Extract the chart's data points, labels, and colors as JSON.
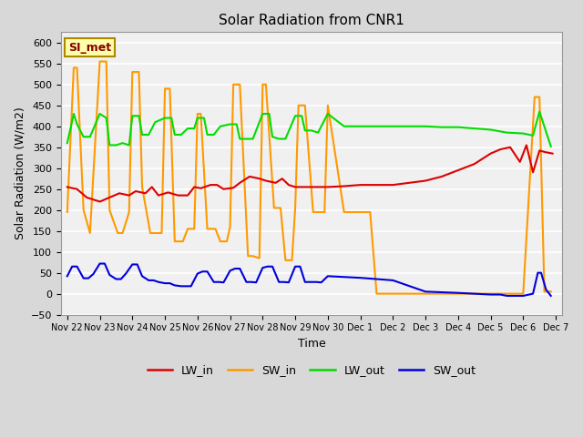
{
  "title": "Solar Radiation from CNR1",
  "xlabel": "Time",
  "ylabel": "Solar Radiation (W/m2)",
  "ylim": [
    -50,
    625
  ],
  "fig_bg_color": "#d8d8d8",
  "plot_bg_color": "#f0f0f0",
  "grid_color": "white",
  "annotation_text": "SI_met",
  "annotation_bg": "#ffffaa",
  "annotation_border": "#aa8800",
  "annotation_text_color": "#880000",
  "colors": {
    "LW_in": "#dd0000",
    "SW_in": "#ff9900",
    "LW_out": "#00dd00",
    "SW_out": "#0000dd"
  },
  "x_tick_labels": [
    "Nov 22",
    "Nov 23",
    "Nov 24",
    "Nov 25",
    "Nov 26",
    "Nov 27",
    "Nov 28",
    "Nov 29",
    "Nov 30",
    "Dec 1",
    "Dec 2",
    "Dec 3",
    "Dec 4",
    "Dec 5",
    "Dec 6",
    "Dec 7"
  ],
  "lw_in_x": [
    0,
    0.3,
    0.6,
    1.0,
    1.3,
    1.6,
    1.9,
    2.1,
    2.4,
    2.6,
    2.8,
    3.1,
    3.4,
    3.7,
    3.9,
    4.1,
    4.4,
    4.6,
    4.8,
    5.1,
    5.3,
    5.6,
    5.9,
    6.1,
    6.4,
    6.6,
    6.8,
    7.0,
    7.3,
    7.5,
    7.8,
    8.0,
    8.5,
    9.0,
    9.5,
    10.0,
    10.5,
    11.0,
    11.5,
    12.0,
    12.5,
    13.0,
    13.3,
    13.6,
    13.9,
    14.1,
    14.3,
    14.5,
    14.7,
    14.9
  ],
  "lw_in_y": [
    255,
    250,
    230,
    220,
    230,
    240,
    235,
    245,
    240,
    255,
    235,
    242,
    235,
    235,
    255,
    252,
    260,
    260,
    250,
    253,
    265,
    280,
    275,
    270,
    265,
    275,
    260,
    255,
    255,
    255,
    255,
    255,
    257,
    260,
    260,
    260,
    265,
    270,
    280,
    295,
    310,
    335,
    345,
    350,
    315,
    355,
    290,
    342,
    338,
    335
  ],
  "sw_in_x": [
    0.0,
    0.2,
    0.3,
    0.5,
    0.7,
    1.0,
    1.2,
    1.3,
    1.55,
    1.7,
    1.9,
    2.0,
    2.2,
    2.3,
    2.55,
    2.7,
    2.9,
    3.0,
    3.15,
    3.3,
    3.55,
    3.7,
    3.9,
    4.0,
    4.1,
    4.3,
    4.55,
    4.7,
    4.9,
    5.0,
    5.1,
    5.3,
    5.55,
    5.7,
    5.9,
    6.0,
    6.1,
    6.35,
    6.55,
    6.7,
    6.9,
    7.0,
    7.1,
    7.3,
    7.55,
    7.7,
    7.9,
    8.0,
    8.5,
    9.0,
    9.3,
    9.5,
    10.0,
    11.0,
    12.0,
    13.0,
    13.5,
    14.0,
    14.35,
    14.5,
    14.65,
    14.85
  ],
  "sw_in_y": [
    195,
    540,
    540,
    200,
    145,
    555,
    555,
    200,
    145,
    145,
    195,
    530,
    530,
    255,
    145,
    145,
    145,
    490,
    490,
    125,
    125,
    155,
    155,
    430,
    430,
    155,
    155,
    125,
    125,
    160,
    500,
    500,
    90,
    90,
    85,
    500,
    500,
    205,
    205,
    80,
    80,
    205,
    450,
    450,
    195,
    195,
    195,
    450,
    195,
    195,
    195,
    0,
    0,
    0,
    0,
    0,
    0,
    0,
    470,
    470,
    5,
    5
  ],
  "lw_out_x": [
    0.0,
    0.2,
    0.3,
    0.5,
    0.7,
    1.0,
    1.2,
    1.3,
    1.5,
    1.7,
    1.9,
    2.0,
    2.2,
    2.3,
    2.5,
    2.7,
    3.0,
    3.2,
    3.3,
    3.5,
    3.7,
    3.9,
    4.0,
    4.2,
    4.3,
    4.5,
    4.7,
    5.0,
    5.2,
    5.3,
    5.5,
    5.7,
    6.0,
    6.2,
    6.3,
    6.5,
    6.7,
    7.0,
    7.2,
    7.3,
    7.5,
    7.7,
    8.0,
    8.5,
    9.0,
    9.5,
    10.0,
    10.5,
    11.0,
    11.5,
    12.0,
    12.5,
    13.0,
    13.5,
    14.0,
    14.3,
    14.5,
    14.85
  ],
  "lw_out_y": [
    360,
    430,
    405,
    375,
    375,
    430,
    420,
    355,
    355,
    360,
    355,
    425,
    425,
    380,
    380,
    410,
    420,
    420,
    380,
    380,
    395,
    395,
    420,
    420,
    380,
    380,
    400,
    405,
    405,
    370,
    370,
    370,
    430,
    430,
    375,
    370,
    370,
    425,
    425,
    390,
    390,
    385,
    430,
    400,
    400,
    400,
    400,
    400,
    400,
    398,
    398,
    395,
    392,
    385,
    383,
    378,
    435,
    352
  ],
  "sw_out_x": [
    0.0,
    0.15,
    0.3,
    0.5,
    0.65,
    0.8,
    1.0,
    1.15,
    1.3,
    1.5,
    1.65,
    1.8,
    2.0,
    2.15,
    2.3,
    2.5,
    2.65,
    2.8,
    3.0,
    3.15,
    3.3,
    3.5,
    3.8,
    4.0,
    4.15,
    4.3,
    4.5,
    4.65,
    4.8,
    5.0,
    5.15,
    5.3,
    5.5,
    5.65,
    5.8,
    6.0,
    6.15,
    6.3,
    6.5,
    6.65,
    6.8,
    7.0,
    7.15,
    7.3,
    7.5,
    7.65,
    7.8,
    8.0,
    8.5,
    9.0,
    9.5,
    10.0,
    11.0,
    12.0,
    12.5,
    13.0,
    13.3,
    13.5,
    13.8,
    14.0,
    14.3,
    14.45,
    14.55,
    14.7,
    14.85
  ],
  "sw_out_y": [
    42,
    65,
    65,
    37,
    37,
    47,
    72,
    72,
    45,
    35,
    35,
    48,
    70,
    70,
    42,
    32,
    32,
    28,
    25,
    25,
    20,
    18,
    18,
    48,
    53,
    53,
    28,
    28,
    27,
    55,
    60,
    60,
    28,
    28,
    27,
    62,
    65,
    65,
    28,
    28,
    27,
    65,
    65,
    28,
    28,
    28,
    27,
    42,
    40,
    38,
    35,
    32,
    5,
    2,
    0,
    -2,
    -2,
    -5,
    -5,
    -5,
    0,
    50,
    50,
    10,
    -5
  ]
}
